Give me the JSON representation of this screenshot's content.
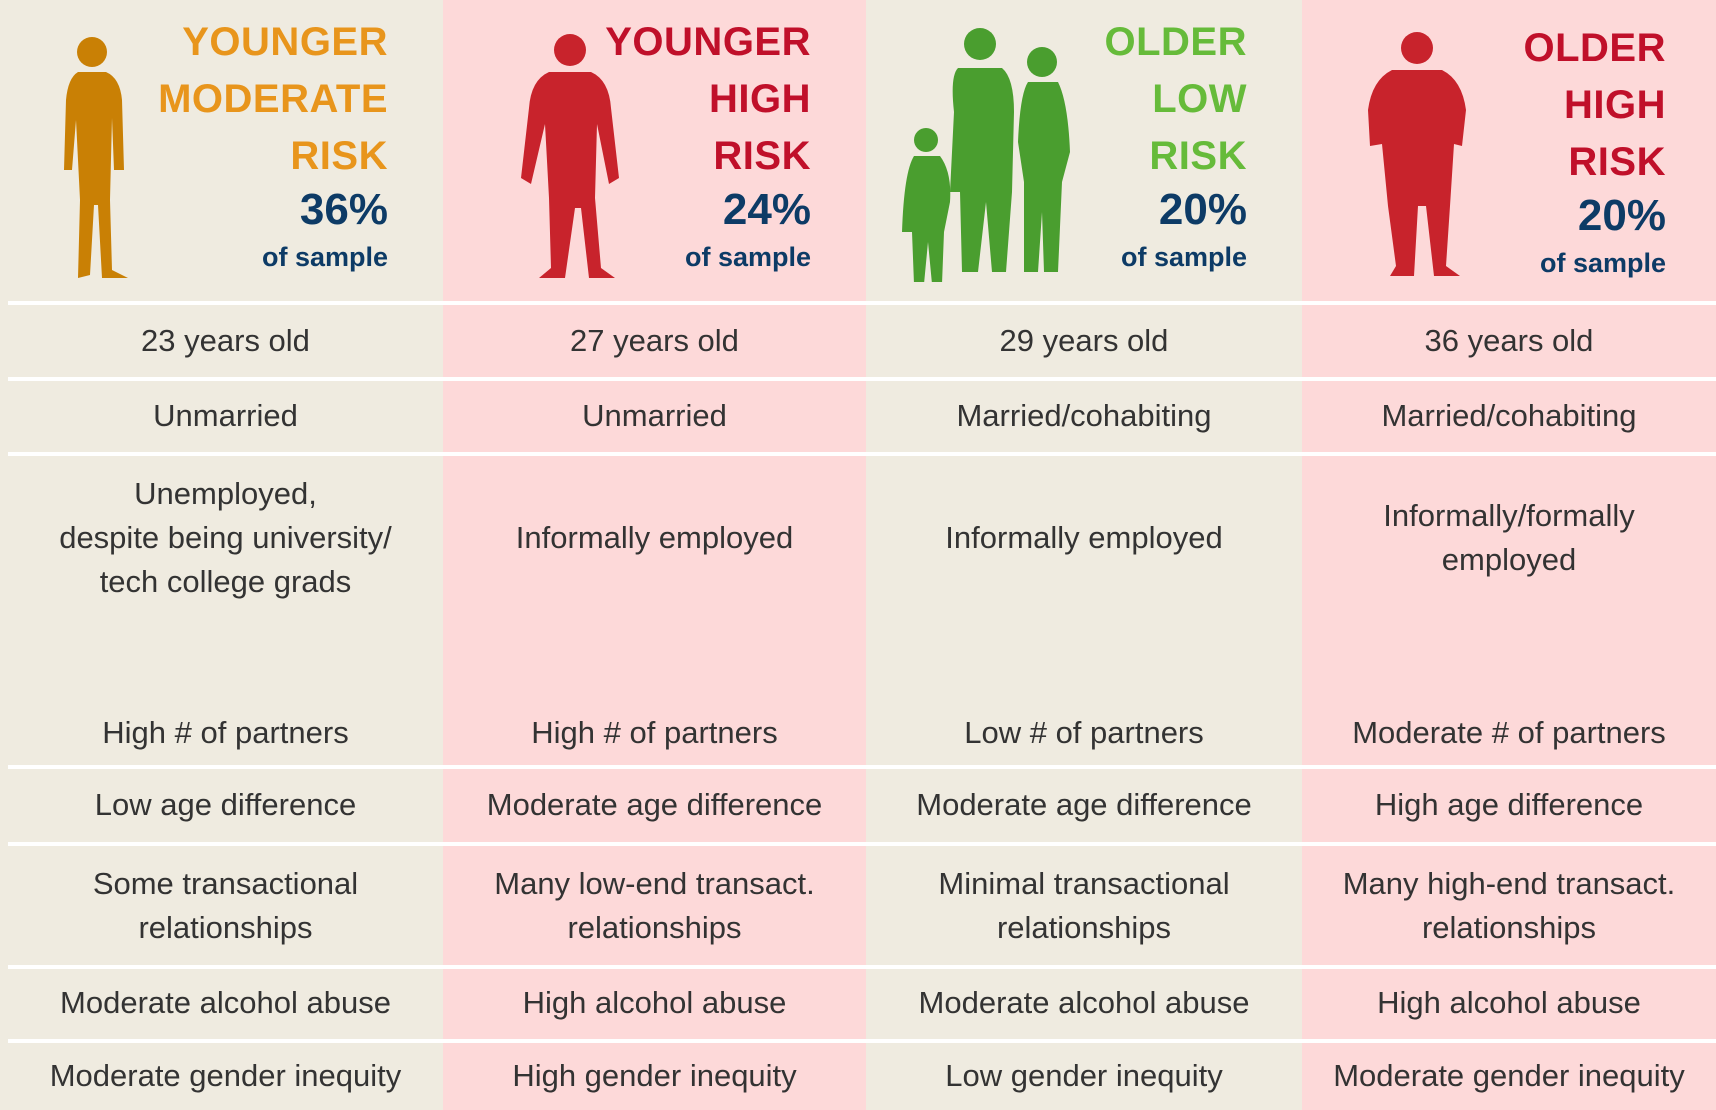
{
  "columns": [
    {
      "title": [
        "YOUNGER",
        "MODERATE",
        "RISK"
      ],
      "share": "36%",
      "share_note": "of sample",
      "rows": [
        "23 years old",
        "Unmarried",
        "Unemployed,\ndespite being university/\ntech college grads",
        "High # of partners",
        "Low age difference",
        "Some transactional\nrelationships",
        "Moderate alcohol abuse",
        "Moderate gender inequity"
      ]
    },
    {
      "title": [
        "YOUNGER",
        "HIGH",
        "RISK"
      ],
      "share": "24%",
      "share_note": "of sample",
      "rows": [
        "27 years old",
        "Unmarried",
        "Informally employed",
        "High # of partners",
        "Moderate age difference",
        "Many low-end transact.\nrelationships",
        "High alcohol abuse",
        "High gender inequity"
      ]
    },
    {
      "title": [
        "OLDER",
        "LOW",
        "RISK"
      ],
      "share": "20%",
      "share_note": "of sample",
      "rows": [
        "29 years old",
        "Married/cohabiting",
        "Informally employed",
        "Low # of partners",
        "Moderate age difference",
        "Minimal transactional\nrelationships",
        "Moderate alcohol abuse",
        "Low gender inequity"
      ]
    },
    {
      "title": [
        "OLDER",
        "HIGH",
        "RISK"
      ],
      "share": "20%",
      "share_note": "of sample",
      "rows": [
        "36 years old",
        "Married/cohabiting",
        "Informally/formally\nemployed",
        "Moderate # of partners",
        "High age difference",
        "Many high-end transact.\nrelationships",
        "High alcohol abuse",
        "Moderate gender inequity"
      ]
    }
  ]
}
